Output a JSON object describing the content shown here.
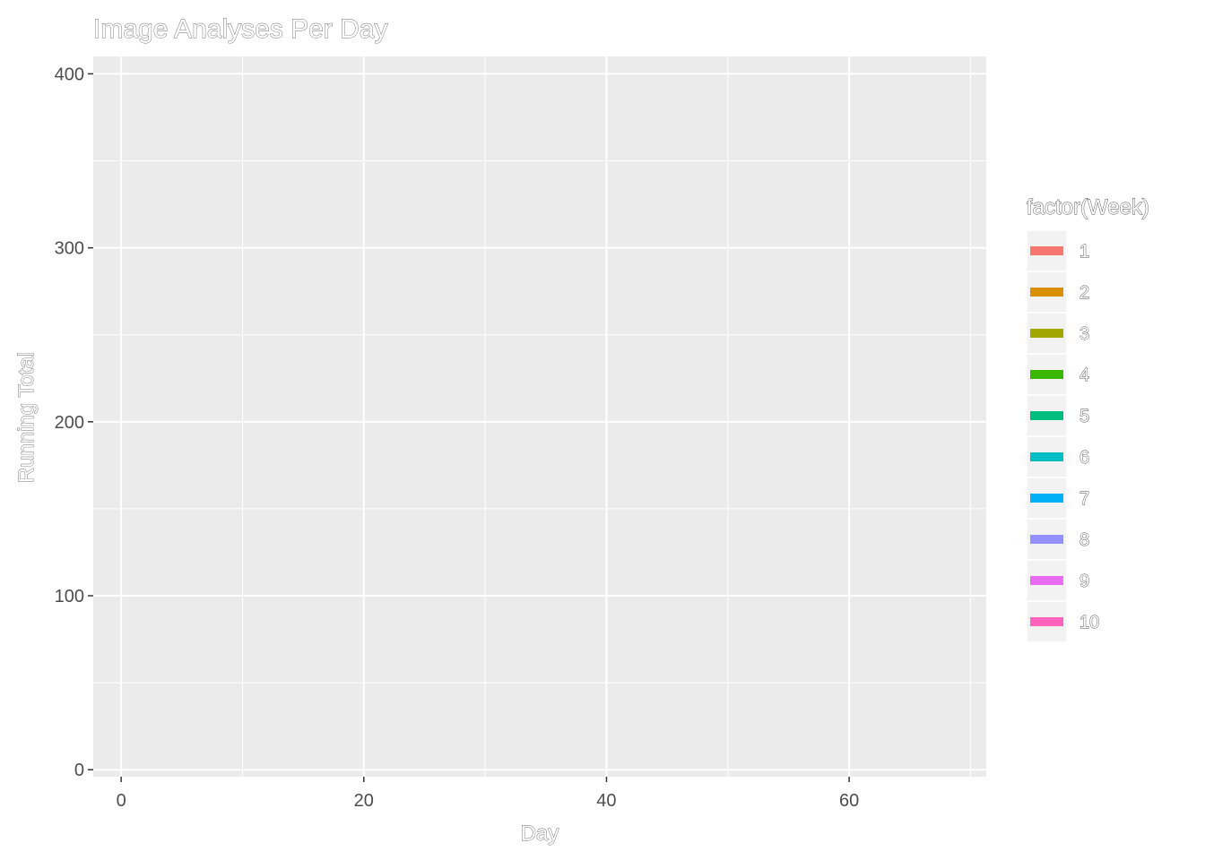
{
  "chart_data": {
    "type": "area",
    "title": "Image Analyses Per Day",
    "xlabel": "Day",
    "ylabel": "Running Total",
    "xlim": [
      -2.3,
      71.3
    ],
    "ylim": [
      -4.0,
      410.0
    ],
    "x_ticks": [
      0,
      20,
      40,
      60
    ],
    "x_tick_labels": [
      "0",
      "20",
      "40",
      "60"
    ],
    "x_minor_ticks": [
      10,
      30,
      50,
      70
    ],
    "y_ticks": [
      0,
      100,
      200,
      300,
      400
    ],
    "y_tick_labels": [
      "0",
      "100",
      "200",
      "300",
      "400"
    ],
    "y_minor_ticks": [
      50,
      150,
      250,
      350
    ],
    "grid": true,
    "legend": {
      "title": "factor(Week)",
      "placement": "right",
      "entries": [
        {
          "label": "1",
          "color": "#F8766D"
        },
        {
          "label": "2",
          "color": "#D89000"
        },
        {
          "label": "3",
          "color": "#A3A500"
        },
        {
          "label": "4",
          "color": "#39B600"
        },
        {
          "label": "5",
          "color": "#00BF7D"
        },
        {
          "label": "6",
          "color": "#00BFC4"
        },
        {
          "label": "7",
          "color": "#00B0F6"
        },
        {
          "label": "8",
          "color": "#9590FF"
        },
        {
          "label": "9",
          "color": "#E76BF3"
        },
        {
          "label": "10",
          "color": "#FF62BC"
        }
      ]
    },
    "series": [],
    "colors": {
      "panel_background": "#EBEBEB",
      "grid": "#FFFFFF",
      "tick": "#333333"
    }
  }
}
